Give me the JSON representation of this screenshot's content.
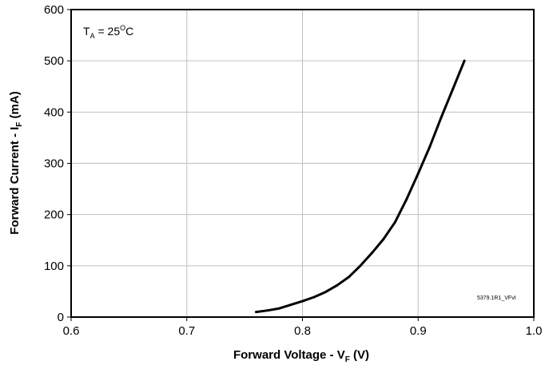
{
  "chart_data": {
    "type": "line",
    "x_ticks": [
      "0.6",
      "0.7",
      "0.8",
      "0.9",
      "1.0"
    ],
    "y_ticks": [
      "0",
      "100",
      "200",
      "300",
      "400",
      "500",
      "600"
    ],
    "xlim": [
      0.6,
      1.0
    ],
    "ylim": [
      0,
      600
    ],
    "grid": true,
    "xlabel": {
      "main": "Forward Voltage - V",
      "sub": "F",
      "tail": " (V)"
    },
    "ylabel": {
      "main": "Forward Current - I",
      "sub": "F",
      "tail": " (mA)"
    },
    "annotation": {
      "main": "T",
      "sub": "A",
      "mid": " = 25",
      "sup": "O",
      "tail": "C"
    },
    "figure_code": "5379.1R1_VFvI",
    "series": [
      {
        "x": [
          0.76,
          0.77,
          0.78,
          0.79,
          0.8,
          0.81,
          0.82,
          0.83,
          0.84,
          0.85,
          0.86,
          0.87,
          0.88,
          0.89,
          0.9,
          0.91,
          0.92,
          0.93,
          0.94
        ],
        "y": [
          10,
          13,
          17,
          24,
          31,
          39,
          49,
          62,
          78,
          100,
          125,
          152,
          185,
          230,
          280,
          332,
          390,
          445,
          500
        ]
      }
    ]
  }
}
